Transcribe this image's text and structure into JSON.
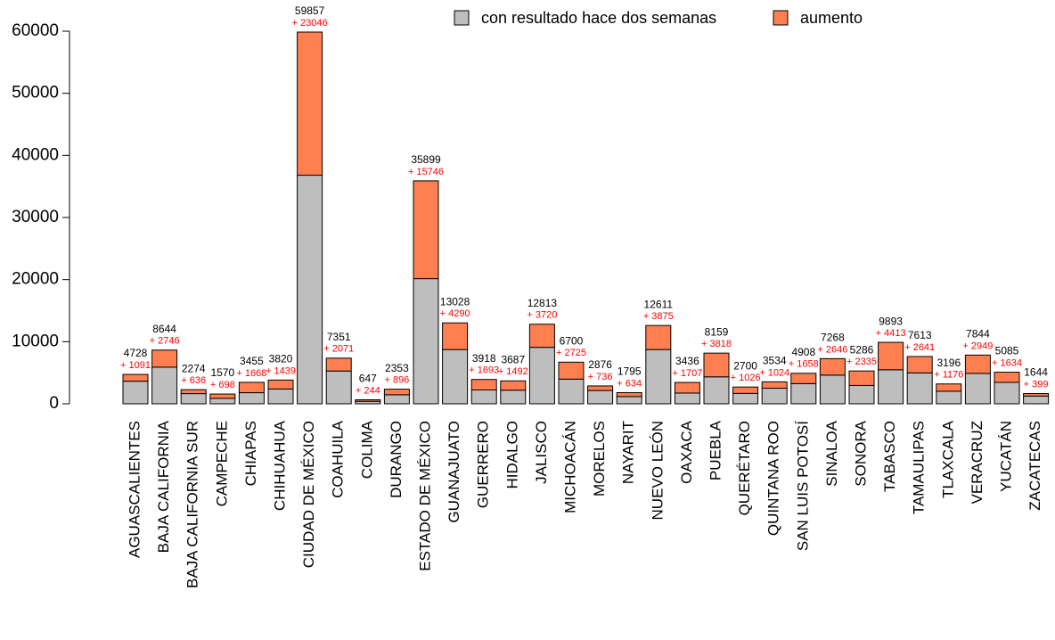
{
  "chart_data": {
    "type": "stacked_bar",
    "categories": [
      "AGUASCALIENTES",
      "BAJA CALIFORNIA",
      "BAJA CALIFORNIA SUR",
      "CAMPECHE",
      "CHIAPAS",
      "CHIHUAHUA",
      "CIUDAD DE MÉXICO",
      "COAHUILA",
      "COLIMA",
      "DURANGO",
      "ESTADO DE MÉXICO",
      "GUANAJUATO",
      "GUERRERO",
      "HIDALGO",
      "JALISCO",
      "MICHOACÁN",
      "MORELOS",
      "NAYARIT",
      "NUEVO LEÓN",
      "OAXACA",
      "PUEBLA",
      "QUERÉTARO",
      "QUINTANA ROO",
      "SAN LUIS POTOSÍ",
      "SINALOA",
      "SONORA",
      "TABASCO",
      "TAMAULIPAS",
      "TLAXCALA",
      "VERACRUZ",
      "YUCATÁN",
      "ZACATECAS"
    ],
    "series": [
      {
        "name": "con resultado hace dos semanas",
        "color": "#bebebe",
        "values": [
          3637,
          5898,
          1638,
          872,
          1787,
          2381,
          36811,
          5280,
          403,
          1457,
          20153,
          8738,
          2225,
          2195,
          9093,
          3975,
          2140,
          1161,
          8736,
          1729,
          4341,
          1674,
          2510,
          3250,
          4622,
          2951,
          5480,
          4972,
          2020,
          4895,
          3451,
          1245
        ]
      },
      {
        "name": "aumento",
        "color": "#ff7f50",
        "values": [
          1091,
          2746,
          636,
          698,
          1668,
          1439,
          23046,
          2071,
          244,
          896,
          15746,
          4290,
          1693,
          1492,
          3720,
          2725,
          736,
          634,
          3875,
          1707,
          3818,
          1026,
          1024,
          1658,
          2646,
          2335,
          4413,
          2641,
          1176,
          2949,
          1634,
          399
        ],
        "value_labels": [
          "+ 1091",
          "+ 2746",
          "+ 636",
          "+ 698",
          "+ 1668",
          "+ 1439",
          "+ 23046",
          "+ 2071",
          "+ 244",
          "+ 896",
          "+ 15746",
          "+ 4290",
          "+ 1693",
          "+ 1492",
          "+ 3720",
          "+ 2725",
          "+ 736",
          "+ 634",
          "+ 3875",
          "+ 1707",
          "+ 3818",
          "+ 1026",
          "+ 1024",
          "+ 1658",
          "+ 2646",
          "+ 2335",
          "+ 4413",
          "+ 2641",
          "+ 1176",
          "+ 2949",
          "+ 1634",
          "+ 399"
        ]
      }
    ],
    "totals": [
      4728,
      8644,
      2274,
      1570,
      3455,
      3820,
      59857,
      7351,
      647,
      2353,
      35899,
      13028,
      3918,
      3687,
      12813,
      6700,
      2876,
      1795,
      12611,
      3436,
      8159,
      2700,
      3534,
      4908,
      7268,
      5286,
      9893,
      7613,
      3196,
      7844,
      5085,
      1644
    ],
    "ylim": [
      0,
      60000
    ],
    "yticks": [
      0,
      10000,
      20000,
      30000,
      40000,
      50000,
      60000
    ],
    "grid": false,
    "legend_position": "top"
  }
}
